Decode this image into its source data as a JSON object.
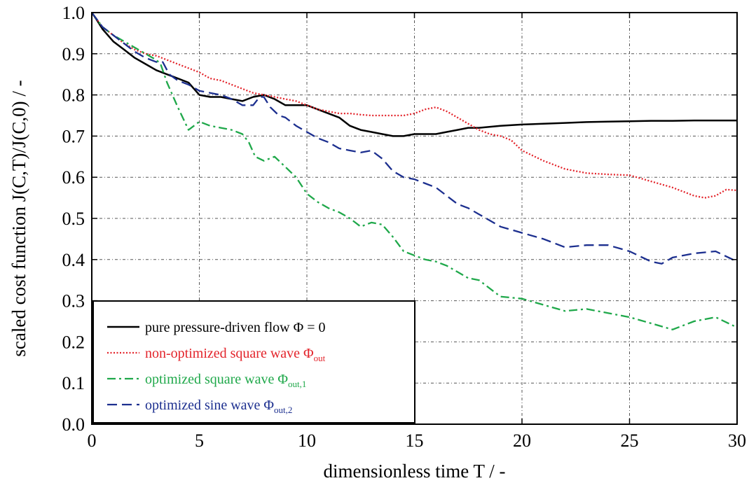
{
  "chart_data": {
    "type": "line",
    "xlabel": "dimensionless time T / -",
    "ylabel": "scaled cost function J(C,T)/J(C,0)  / -",
    "xlim": [
      0,
      30
    ],
    "ylim": [
      0,
      1
    ],
    "xticks": [
      0,
      5,
      10,
      15,
      20,
      25,
      30
    ],
    "xtick_labels": [
      "0",
      "5",
      "10",
      "15",
      "20",
      "25",
      "30"
    ],
    "yticks": [
      0,
      0.1,
      0.2,
      0.3,
      0.4,
      0.5,
      0.6,
      0.7,
      0.8,
      0.9,
      1.0
    ],
    "ytick_labels": [
      "0.0",
      "0.1",
      "0.2",
      "0.3",
      "0.4",
      "0.5",
      "0.6",
      "0.7",
      "0.8",
      "0.9",
      "1.0"
    ],
    "grid": true,
    "legend_position": "bottom-left",
    "series": [
      {
        "name": "pure pressure-driven flow Φ = 0",
        "label_main": "pure pressure-driven flow Φ = 0",
        "label_sub": "",
        "color": "#000000",
        "style": "solid",
        "x": [
          0,
          0.2,
          0.5,
          1,
          1.5,
          2,
          2.5,
          3,
          3.5,
          4,
          4.5,
          5,
          5.5,
          6,
          6.5,
          7,
          7.5,
          8,
          8.5,
          9,
          9.5,
          10,
          10.5,
          11,
          11.5,
          12,
          12.5,
          13,
          13.5,
          14,
          14.5,
          15,
          15.5,
          16,
          16.5,
          17,
          17.5,
          18,
          19,
          20,
          21,
          22,
          23,
          24,
          25,
          26,
          27,
          28,
          29,
          30
        ],
        "y": [
          1.0,
          0.985,
          0.96,
          0.93,
          0.91,
          0.89,
          0.875,
          0.86,
          0.85,
          0.84,
          0.83,
          0.8,
          0.795,
          0.795,
          0.79,
          0.785,
          0.795,
          0.8,
          0.79,
          0.775,
          0.775,
          0.775,
          0.765,
          0.755,
          0.745,
          0.725,
          0.715,
          0.71,
          0.705,
          0.7,
          0.7,
          0.705,
          0.705,
          0.705,
          0.71,
          0.715,
          0.72,
          0.72,
          0.725,
          0.728,
          0.73,
          0.732,
          0.734,
          0.735,
          0.736,
          0.737,
          0.737,
          0.738,
          0.738,
          0.738
        ]
      },
      {
        "name": "non-optimized square wave Φout",
        "label_main": "non-optimized square wave Φ",
        "label_sub": "out",
        "color": "#e3242b",
        "style": "dotted",
        "x": [
          0,
          0.5,
          1,
          1.5,
          2,
          2.5,
          3,
          3.5,
          4,
          4.5,
          5,
          5.5,
          6,
          6.5,
          7,
          7.5,
          8,
          8.5,
          9,
          9.5,
          10,
          10.5,
          11,
          11.5,
          12,
          12.5,
          13,
          13.5,
          14,
          14.5,
          15,
          15.5,
          16,
          16.5,
          17,
          17.5,
          18,
          18.5,
          19,
          19.5,
          20,
          21,
          22,
          23,
          24,
          25,
          26,
          27,
          28,
          28.5,
          29,
          29.5,
          30
        ],
        "y": [
          1.0,
          0.965,
          0.945,
          0.925,
          0.91,
          0.9,
          0.895,
          0.885,
          0.875,
          0.865,
          0.855,
          0.84,
          0.835,
          0.825,
          0.815,
          0.805,
          0.8,
          0.795,
          0.79,
          0.785,
          0.775,
          0.765,
          0.76,
          0.755,
          0.755,
          0.752,
          0.75,
          0.75,
          0.75,
          0.75,
          0.755,
          0.765,
          0.77,
          0.76,
          0.745,
          0.73,
          0.715,
          0.705,
          0.7,
          0.69,
          0.665,
          0.64,
          0.62,
          0.61,
          0.607,
          0.605,
          0.59,
          0.575,
          0.555,
          0.55,
          0.555,
          0.57,
          0.568
        ]
      },
      {
        "name": "optimized square wave Φout,1",
        "label_main": "optimized square wave Φ",
        "label_sub": "out,1",
        "color": "#1fa84a",
        "style": "dashdot",
        "x": [
          0,
          0.5,
          1,
          1.5,
          2,
          2.5,
          3,
          3.2,
          3.5,
          4,
          4.5,
          5,
          5.5,
          6,
          6.5,
          7,
          7.3,
          7.6,
          8,
          8.5,
          9,
          9.5,
          10,
          10.5,
          11,
          11.5,
          12,
          12.5,
          13,
          13.5,
          14,
          14.5,
          15,
          15.5,
          16,
          16.5,
          17,
          17.5,
          18,
          19,
          20,
          21,
          22,
          23,
          24,
          25,
          26,
          27,
          28,
          29,
          30
        ],
        "y": [
          1.0,
          0.965,
          0.945,
          0.93,
          0.915,
          0.9,
          0.885,
          0.875,
          0.83,
          0.77,
          0.715,
          0.735,
          0.725,
          0.72,
          0.715,
          0.705,
          0.685,
          0.65,
          0.64,
          0.65,
          0.625,
          0.6,
          0.56,
          0.54,
          0.525,
          0.515,
          0.5,
          0.48,
          0.49,
          0.485,
          0.455,
          0.42,
          0.41,
          0.4,
          0.395,
          0.385,
          0.37,
          0.355,
          0.35,
          0.31,
          0.305,
          0.29,
          0.275,
          0.28,
          0.27,
          0.26,
          0.245,
          0.23,
          0.25,
          0.26,
          0.235
        ]
      },
      {
        "name": "optimized sine wave Φout,2",
        "label_main": "optimized sine wave Φ",
        "label_sub": "out,2",
        "color": "#1c2f8f",
        "style": "dashed",
        "x": [
          0,
          0.5,
          1,
          1.5,
          2,
          2.5,
          3,
          3.3,
          3.6,
          4,
          4.5,
          5,
          5.5,
          6,
          6.5,
          7,
          7.5,
          7.8,
          8,
          8.3,
          8.7,
          9,
          9.5,
          10,
          10.5,
          11,
          11.5,
          12,
          12.5,
          13,
          13.5,
          14,
          14.5,
          15,
          15.5,
          16,
          16.5,
          17,
          17.5,
          18,
          19,
          20,
          21,
          22,
          23,
          24,
          25,
          26,
          26.5,
          27,
          28,
          29,
          30
        ],
        "y": [
          1.0,
          0.965,
          0.945,
          0.925,
          0.905,
          0.89,
          0.88,
          0.88,
          0.85,
          0.835,
          0.825,
          0.81,
          0.805,
          0.8,
          0.79,
          0.775,
          0.775,
          0.795,
          0.795,
          0.77,
          0.75,
          0.745,
          0.725,
          0.71,
          0.695,
          0.685,
          0.67,
          0.665,
          0.66,
          0.665,
          0.645,
          0.615,
          0.6,
          0.595,
          0.585,
          0.575,
          0.555,
          0.535,
          0.525,
          0.51,
          0.48,
          0.465,
          0.45,
          0.43,
          0.435,
          0.435,
          0.42,
          0.395,
          0.39,
          0.405,
          0.415,
          0.42,
          0.395
        ]
      }
    ]
  }
}
